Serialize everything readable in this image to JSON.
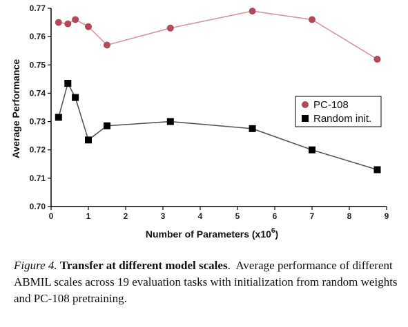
{
  "chart_data": {
    "type": "line",
    "xlabel": "Number of Parameters (x10",
    "xlabel_sup": "6",
    "xlabel_close": ")",
    "ylabel": "Average Performance",
    "xlim": [
      0,
      9
    ],
    "ylim": [
      0.7,
      0.77
    ],
    "xticks": [
      "0",
      "1",
      "2",
      "3",
      "4",
      "5",
      "6",
      "7",
      "8",
      "9"
    ],
    "yticks": [
      "0.70",
      "0.71",
      "0.72",
      "0.73",
      "0.74",
      "0.75",
      "0.76",
      "0.77"
    ],
    "grid": false,
    "legend_position": "right",
    "series": [
      {
        "name": "PC-108",
        "marker": "circle",
        "line_color": "#d4959f",
        "marker_color": "#b04a5a",
        "x": [
          0.2,
          0.45,
          0.65,
          1.0,
          1.5,
          3.2,
          5.4,
          7.0,
          8.75
        ],
        "y": [
          0.765,
          0.7645,
          0.766,
          0.7635,
          0.757,
          0.763,
          0.769,
          0.766,
          0.752
        ]
      },
      {
        "name": "Random init.",
        "marker": "square",
        "line_color": "#555555",
        "marker_color": "#000000",
        "x": [
          0.2,
          0.45,
          0.65,
          1.0,
          1.5,
          3.2,
          5.4,
          7.0,
          8.75
        ],
        "y": [
          0.7315,
          0.7435,
          0.7385,
          0.7235,
          0.7285,
          0.73,
          0.7275,
          0.72,
          0.713
        ]
      }
    ]
  },
  "caption": {
    "figure_label": "Figure 4.",
    "title": "Transfer at different model scales",
    "title_end": ".",
    "text": "Average performance of different ABMIL scales across 19 evaluation tasks with initialization from random weights and PC-108 pretraining."
  }
}
